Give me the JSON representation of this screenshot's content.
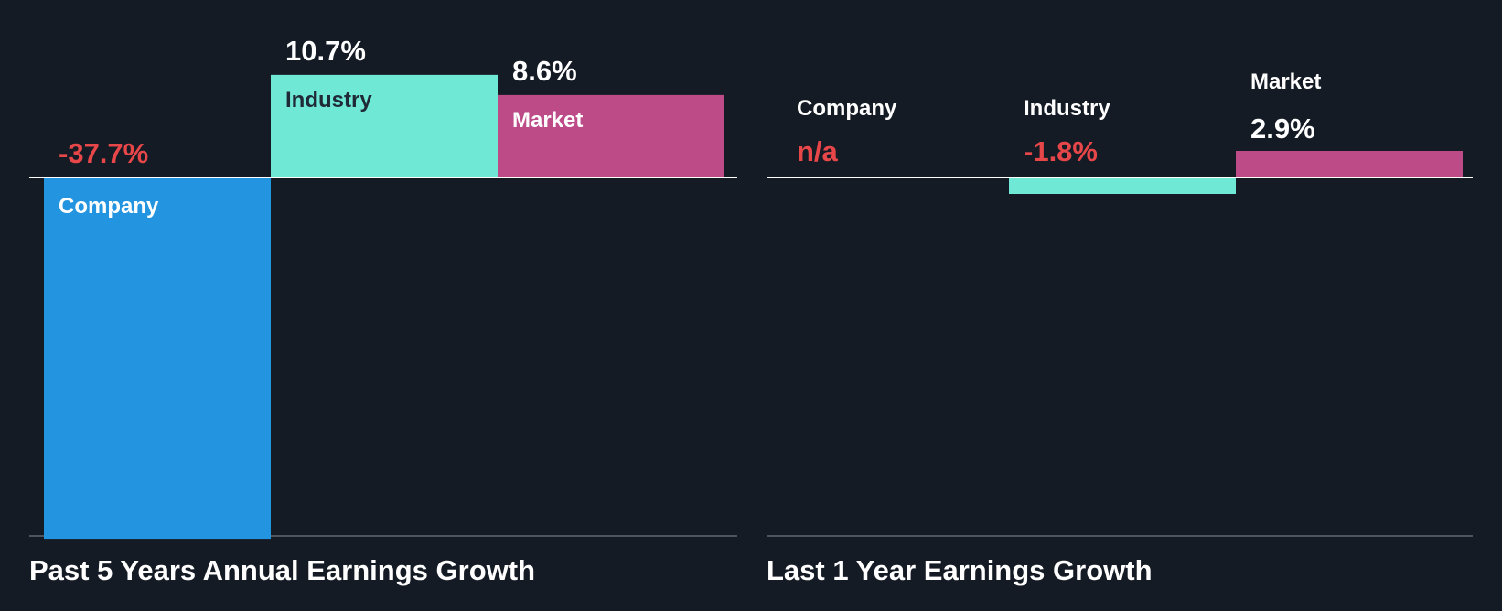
{
  "colors": {
    "background": "#151b24",
    "company": "#2394e0",
    "industry": "#6fe8d6",
    "market": "#bd4b88",
    "negative_text": "#e8474a",
    "positive_text": "#ffffff",
    "axis": "#ffffff",
    "baseline": "#50545c"
  },
  "chart_data": [
    {
      "type": "bar",
      "title": "Past 5 Years Annual Earnings Growth",
      "categories": [
        "Company",
        "Industry",
        "Market"
      ],
      "values": [
        -37.7,
        10.7,
        8.6
      ],
      "value_labels": [
        "-37.7%",
        "10.7%",
        "8.6%"
      ],
      "unit": "%",
      "ylim": [
        -37.7,
        10.7
      ],
      "grid": false,
      "legend": "none"
    },
    {
      "type": "bar",
      "title": "Last 1 Year Earnings Growth",
      "categories": [
        "Company",
        "Industry",
        "Market"
      ],
      "values": [
        null,
        -1.8,
        2.9
      ],
      "value_labels": [
        "n/a",
        "-1.8%",
        "2.9%"
      ],
      "unit": "%",
      "grid": false,
      "legend": "none"
    }
  ]
}
